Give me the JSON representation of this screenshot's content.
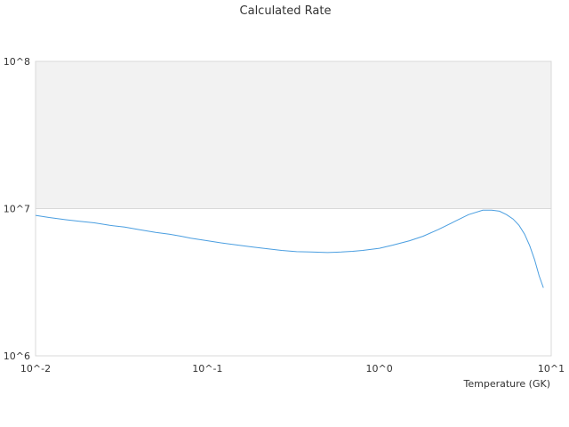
{
  "chart_data": {
    "type": "line",
    "title": "Calculated Rate",
    "xlabel": "Temperature (GK)",
    "ylabel": "",
    "x_scale": "log",
    "y_scale": "log",
    "xlim": [
      0.01,
      10
    ],
    "ylim": [
      1000000,
      100000000
    ],
    "x_ticks": [
      0.01,
      0.1,
      1,
      10
    ],
    "x_tick_labels": [
      "10^-2",
      "10^-1",
      "10^0",
      "10^1"
    ],
    "y_ticks": [
      1000000,
      10000000,
      100000000
    ],
    "y_tick_labels": [
      "10^6",
      "10^7",
      "10^8"
    ],
    "band": {
      "from": 10000000,
      "to": 100000000,
      "color": "#f2f2f2"
    },
    "line_color": "#4a9ee0",
    "grid": false,
    "legend": "none",
    "series": [
      {
        "x": [
          0.01,
          0.012,
          0.015,
          0.018,
          0.022,
          0.027,
          0.033,
          0.04,
          0.05,
          0.06,
          0.07,
          0.08,
          0.1,
          0.12,
          0.15,
          0.18,
          0.22,
          0.27,
          0.33,
          0.4,
          0.5,
          0.6,
          0.7,
          0.8,
          1.0,
          1.2,
          1.5,
          1.8,
          2.2,
          2.7,
          3.3,
          4.0,
          4.5,
          5.0,
          5.5,
          6.0,
          6.5,
          7.0,
          7.5,
          8.0,
          8.5,
          9.0
        ],
        "y": [
          9000000,
          8700000,
          8400000,
          8200000,
          8000000,
          7700000,
          7500000,
          7200000,
          6900000,
          6700000,
          6500000,
          6300000,
          6050000,
          5850000,
          5650000,
          5500000,
          5350000,
          5200000,
          5100000,
          5080000,
          5030000,
          5070000,
          5130000,
          5200000,
          5380000,
          5650000,
          6050000,
          6500000,
          7200000,
          8100000,
          9100000,
          9750000,
          9750000,
          9600000,
          9100000,
          8500000,
          7700000,
          6700000,
          5600000,
          4500000,
          3500000,
          2900000
        ]
      }
    ]
  }
}
